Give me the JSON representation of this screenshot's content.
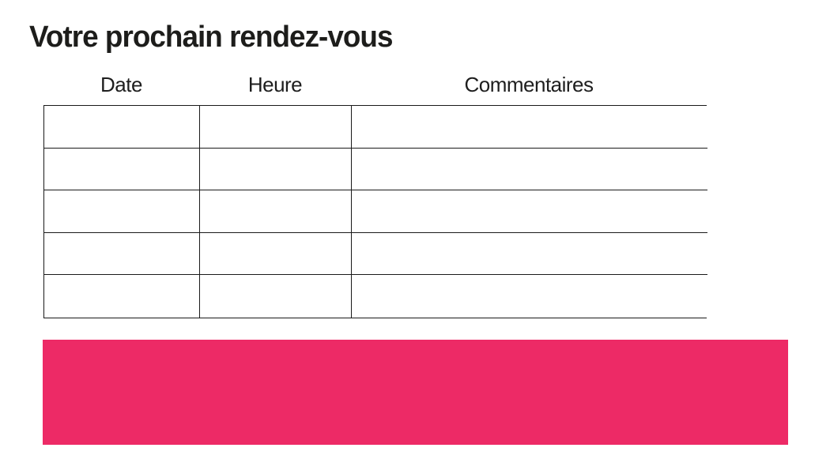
{
  "page": {
    "title": "Votre prochain rendez-vous"
  },
  "table": {
    "columns": [
      {
        "label": "Date"
      },
      {
        "label": "Heure"
      },
      {
        "label": "Commentaires"
      }
    ],
    "rows": [
      [
        "",
        "",
        ""
      ],
      [
        "",
        "",
        ""
      ],
      [
        "",
        "",
        ""
      ],
      [
        "",
        "",
        ""
      ],
      [
        "",
        "",
        ""
      ]
    ],
    "row_count": 5
  },
  "banner": {
    "text": "",
    "color": "#ED2A66"
  },
  "colors": {
    "text": "#1d1d1b",
    "border": "#1a1a1a",
    "background": "#ffffff",
    "accent_pink": "#ED2A66"
  }
}
